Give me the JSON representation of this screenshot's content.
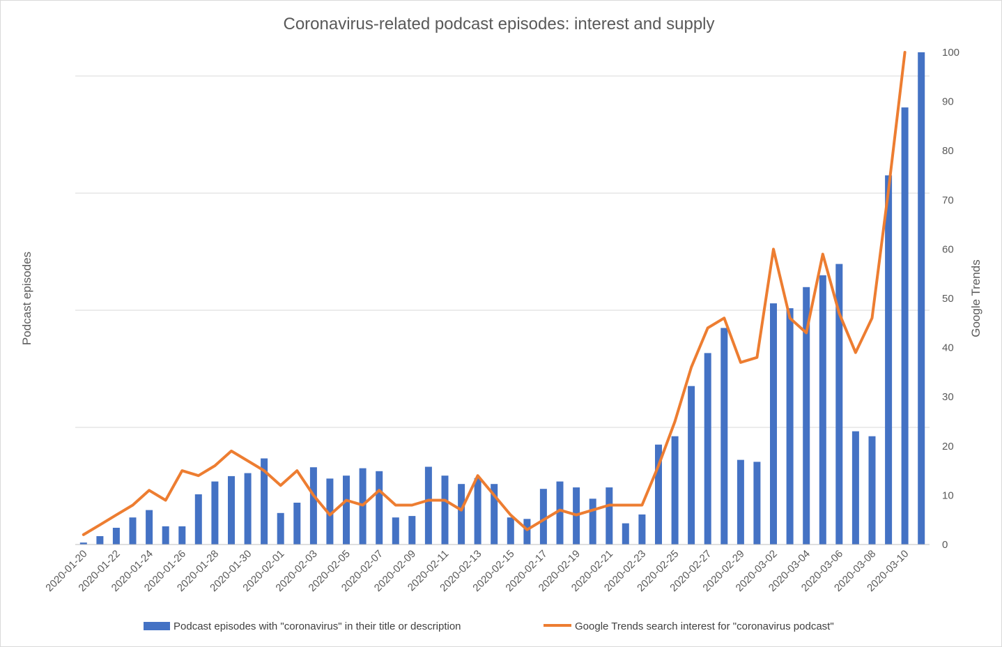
{
  "chart_data": {
    "type": "bar+line",
    "title": "Coronavirus-related podcast episodes: interest and supply",
    "ylabel_left": "Podcast episodes",
    "ylabel_right": "Google Trends",
    "y_right_ticks": [
      "0",
      "10",
      "20",
      "30",
      "40",
      "50",
      "60",
      "70",
      "80",
      "90",
      "100"
    ],
    "y_right_lim": [
      0,
      100
    ],
    "grid": true,
    "legend_position": "bottom",
    "x_tick_labels": [
      "2020-01-20",
      "2020-01-22",
      "2020-01-24",
      "2020-01-26",
      "2020-01-28",
      "2020-01-30",
      "2020-02-01",
      "2020-02-03",
      "2020-02-05",
      "2020-02-07",
      "2020-02-09",
      "2020-02-11",
      "2020-02-13",
      "2020-02-15",
      "2020-02-17",
      "2020-02-19",
      "2020-02-21",
      "2020-02-23",
      "2020-02-25",
      "2020-02-27",
      "2020-02-29",
      "2020-03-02",
      "2020-03-04",
      "2020-03-06",
      "2020-03-08",
      "2020-03-10"
    ],
    "categories": [
      "2020-01-20",
      "2020-01-21",
      "2020-01-22",
      "2020-01-23",
      "2020-01-24",
      "2020-01-25",
      "2020-01-26",
      "2020-01-27",
      "2020-01-28",
      "2020-01-29",
      "2020-01-30",
      "2020-01-31",
      "2020-02-01",
      "2020-02-02",
      "2020-02-03",
      "2020-02-04",
      "2020-02-05",
      "2020-02-06",
      "2020-02-07",
      "2020-02-08",
      "2020-02-09",
      "2020-02-10",
      "2020-02-11",
      "2020-02-12",
      "2020-02-13",
      "2020-02-14",
      "2020-02-15",
      "2020-02-16",
      "2020-02-17",
      "2020-02-18",
      "2020-02-19",
      "2020-02-20",
      "2020-02-21",
      "2020-02-22",
      "2020-02-23",
      "2020-02-24",
      "2020-02-25",
      "2020-02-26",
      "2020-02-27",
      "2020-02-28",
      "2020-02-29",
      "2020-03-01",
      "2020-03-02",
      "2020-03-03",
      "2020-03-04",
      "2020-03-05",
      "2020-03-06",
      "2020-03-07",
      "2020-03-08",
      "2020-03-09",
      "2020-03-10",
      "2020-03-11"
    ],
    "series": [
      {
        "name": "Podcast episodes with \"coronavirus\" in their title or description",
        "type": "bar",
        "axis": "left",
        "color": "#4472C4",
        "values": [
          0.4,
          1.7,
          3.4,
          5.5,
          7.0,
          3.7,
          3.7,
          10.2,
          12.8,
          13.9,
          14.5,
          17.5,
          6.4,
          8.5,
          15.7,
          13.4,
          14.0,
          15.5,
          14.9,
          5.5,
          5.8,
          15.8,
          14.0,
          12.3,
          13.5,
          12.3,
          5.5,
          5.2,
          11.3,
          12.8,
          11.6,
          9.3,
          11.6,
          4.3,
          6.1,
          20.3,
          22.0,
          32.2,
          38.9,
          44.0,
          17.2,
          16.8,
          49.0,
          48.0,
          52.3,
          54.7,
          57.0,
          23.0,
          22.0,
          75.0,
          88.8,
          100.0
        ]
      },
      {
        "name": "Google Trends search interest for \"coronavirus podcast\"",
        "type": "line",
        "axis": "right",
        "color": "#ED7D31",
        "values": [
          2,
          4,
          6,
          8,
          11,
          9,
          15,
          14,
          16,
          19,
          17,
          15,
          12,
          15,
          10,
          6,
          9,
          8,
          11,
          8,
          8,
          9,
          9,
          7,
          14,
          10,
          6,
          3,
          5,
          7,
          6,
          7,
          8,
          8,
          8,
          16,
          25,
          36,
          44,
          46,
          37,
          38,
          60,
          46,
          43,
          59,
          47,
          39,
          46,
          72,
          100,
          null
        ]
      }
    ]
  }
}
